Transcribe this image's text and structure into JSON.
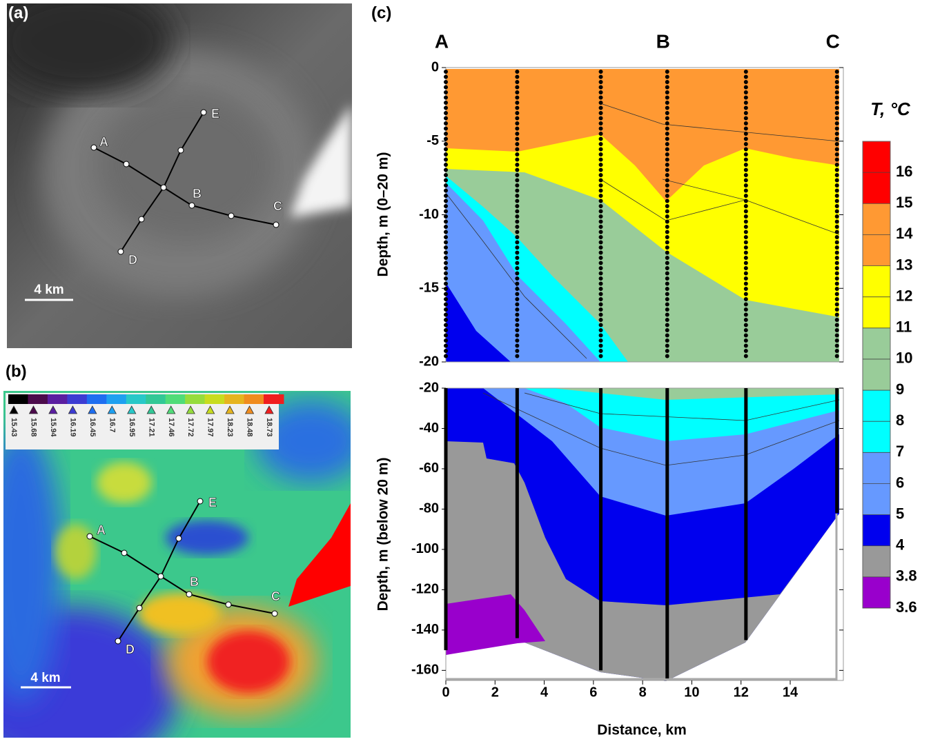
{
  "panel_a": {
    "label": "(a)",
    "points": [
      "A",
      "B",
      "C",
      "D",
      "E"
    ],
    "scale_bar": "4 km"
  },
  "panel_b": {
    "label": "(b)",
    "points": [
      "A",
      "B",
      "C",
      "D",
      "E"
    ],
    "scale_bar": "4 km",
    "colorbar_ticks": [
      15.43,
      15.68,
      15.94,
      16.19,
      16.45,
      16.7,
      16.95,
      17.21,
      17.46,
      17.72,
      17.97,
      18.23,
      18.48,
      18.73
    ],
    "colorbar_colors": [
      "#000000",
      "#4b0b4b",
      "#5a1ea0",
      "#3c3cd2",
      "#1e6ef0",
      "#1ea0f0",
      "#28c8c8",
      "#32c896",
      "#50dc78",
      "#96dc3c",
      "#c8dc1e",
      "#e6b41e",
      "#f08c1e",
      "#f01e1e"
    ]
  },
  "chart_data": {
    "type": "contour",
    "label": "(c)",
    "xlabel": "Distance, km",
    "xlim": [
      0,
      16
    ],
    "xticks": [
      0,
      2,
      4,
      6,
      8,
      10,
      12,
      14
    ],
    "station_labels": [
      "A",
      "B",
      "C"
    ],
    "station_label_x": [
      0,
      9,
      15.9
    ],
    "stations_x": [
      0,
      2.9,
      6.3,
      9.0,
      12.2,
      15.9
    ],
    "station_depths": [
      -150,
      -144,
      -160,
      -164,
      -145,
      -82
    ],
    "upper": {
      "ylabel": "Depth, m (0–20 m)",
      "ylim": [
        -20,
        0
      ],
      "yticks": [
        0,
        -5,
        -10,
        -15,
        -20
      ]
    },
    "lower": {
      "ylabel": "Depth, m (below 20 m)",
      "ylim": [
        -165,
        -20
      ],
      "yticks": [
        -20,
        -40,
        -60,
        -80,
        -100,
        -120,
        -140,
        -160
      ]
    },
    "colorbar": {
      "title": "T, °C",
      "levels": [
        3.6,
        3.8,
        4,
        5,
        6,
        7,
        8,
        9,
        10,
        11,
        12,
        13,
        14,
        15,
        16
      ],
      "colors": [
        "#9900cc",
        "#999999",
        "#0000ee",
        "#6699ff",
        "#6699ff",
        "#00ffff",
        "#00ffff",
        "#99cc99",
        "#99cc99",
        "#ffff00",
        "#ffff00",
        "#ff9933",
        "#ff9933",
        "#ff0000",
        "#ff0000"
      ]
    }
  }
}
